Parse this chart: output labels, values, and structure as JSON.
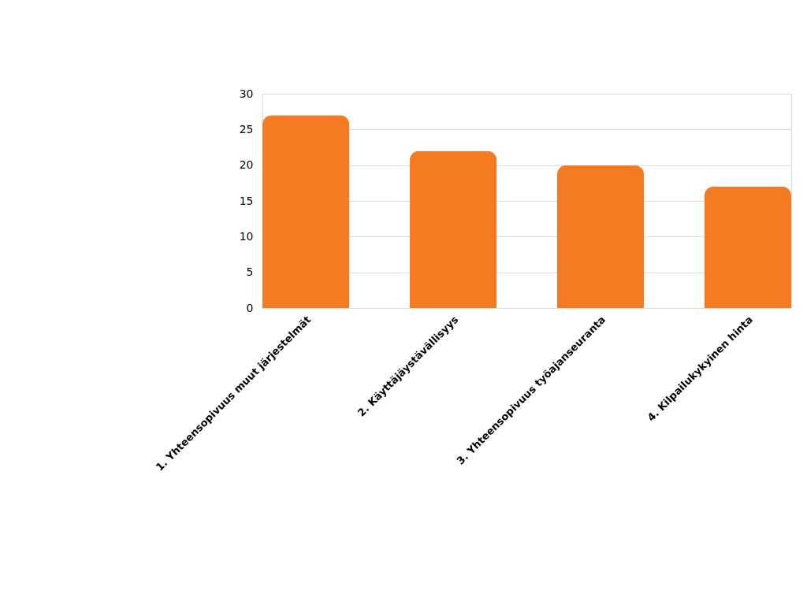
{
  "chart_data": {
    "type": "bar",
    "categories": [
      "1. Yhteensopivuus muut järjestelmät",
      "2. Käyttäjäystävällisyys",
      "3. Yhteensopivuus työajanseuranta",
      "4. Kilpailukykyinen hinta"
    ],
    "values": [
      27,
      22,
      20,
      17
    ],
    "color": "#f47b22",
    "ylim": [
      0,
      30
    ],
    "yticks": [
      0,
      5,
      10,
      15,
      20,
      25,
      30
    ],
    "grid": "y"
  }
}
